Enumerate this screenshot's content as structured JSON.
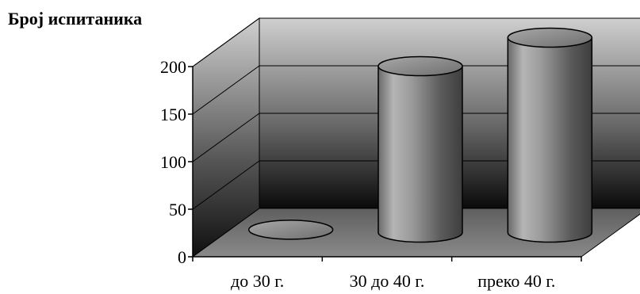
{
  "chart_data": {
    "type": "bar",
    "style": "3d-cylinder",
    "title": "Број испитаника",
    "xlabel": "",
    "ylabel": "",
    "categories": [
      "до 30 г.",
      "30 до 40 г.",
      "преко 40 г."
    ],
    "values": [
      3,
      175,
      205
    ],
    "ylim": [
      0,
      200
    ],
    "yticks": [
      "0",
      "50",
      "100",
      "150",
      "200"
    ],
    "grid": true,
    "legend": "none",
    "colors": {
      "bar": "#9a9a9a",
      "back_wall_top": "#c8c8c8",
      "back_wall_bottom": "#111111",
      "floor": "#6e6e6e"
    }
  }
}
